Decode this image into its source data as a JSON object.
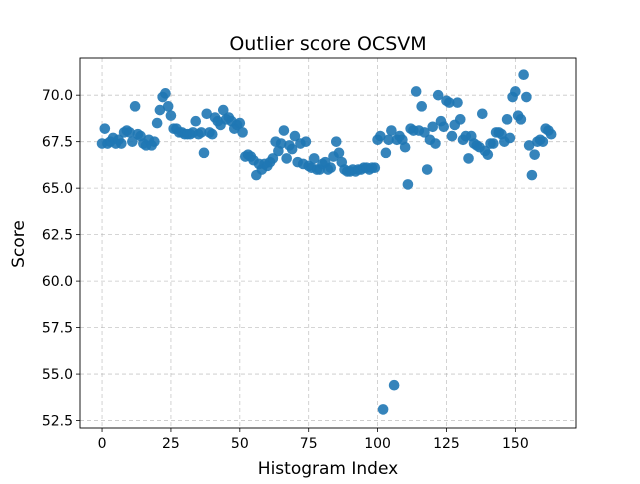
{
  "chart_data": {
    "type": "scatter",
    "title": "Outlier score OCSVM",
    "xlabel": "Histogram Index",
    "ylabel": "Score",
    "xlim": [
      -8,
      172
    ],
    "ylim": [
      52.1,
      72.0
    ],
    "xticks": [
      0,
      25,
      50,
      75,
      100,
      125,
      150
    ],
    "yticks": [
      52.5,
      55.0,
      57.5,
      60.0,
      62.5,
      65.0,
      67.5,
      70.0
    ],
    "ytick_labels": [
      "52.5",
      "55.0",
      "57.5",
      "60.0",
      "62.5",
      "65.0",
      "67.5",
      "70.0"
    ],
    "grid": true,
    "legend": "none",
    "marker_color": "#1f77b4",
    "x": [
      0,
      1,
      2,
      3,
      4,
      5,
      6,
      7,
      8,
      9,
      10,
      11,
      12,
      13,
      14,
      15,
      16,
      17,
      18,
      19,
      20,
      21,
      22,
      23,
      24,
      25,
      26,
      27,
      28,
      29,
      30,
      31,
      32,
      33,
      34,
      35,
      36,
      37,
      38,
      39,
      40,
      41,
      42,
      43,
      44,
      45,
      46,
      47,
      48,
      49,
      50,
      51,
      52,
      53,
      54,
      55,
      56,
      57,
      58,
      59,
      60,
      61,
      62,
      63,
      64,
      65,
      66,
      67,
      68,
      69,
      70,
      71,
      72,
      73,
      74,
      75,
      76,
      77,
      78,
      79,
      80,
      81,
      82,
      83,
      84,
      85,
      86,
      87,
      88,
      89,
      90,
      91,
      92,
      93,
      94,
      95,
      96,
      97,
      98,
      99,
      100,
      101,
      102,
      103,
      104,
      105,
      106,
      107,
      108,
      109,
      110,
      111,
      112,
      113,
      114,
      115,
      116,
      117,
      118,
      119,
      120,
      121,
      122,
      123,
      124,
      125,
      126,
      127,
      128,
      129,
      130,
      131,
      132,
      133,
      134,
      135,
      136,
      137,
      138,
      139,
      140,
      141,
      142,
      143,
      144,
      145,
      146,
      147,
      148,
      149,
      150,
      151,
      152,
      153,
      154,
      155,
      156,
      157,
      158,
      159,
      160,
      161,
      162,
      163
    ],
    "y": [
      67.4,
      68.2,
      67.4,
      67.5,
      67.7,
      67.4,
      67.6,
      67.4,
      68.0,
      68.1,
      68.0,
      67.5,
      69.4,
      67.9,
      67.8,
      67.4,
      67.3,
      67.6,
      67.3,
      67.5,
      68.5,
      69.2,
      69.9,
      70.1,
      69.4,
      68.9,
      68.2,
      68.2,
      68.0,
      68.0,
      67.9,
      67.9,
      67.9,
      68.0,
      68.6,
      67.9,
      68.0,
      66.9,
      69.0,
      68.0,
      67.9,
      68.8,
      68.6,
      68.4,
      69.2,
      68.7,
      68.8,
      68.6,
      68.2,
      68.4,
      68.5,
      68.0,
      66.7,
      66.8,
      66.7,
      66.5,
      65.7,
      66.3,
      66.0,
      66.3,
      66.2,
      66.4,
      66.6,
      67.5,
      67.0,
      67.4,
      68.1,
      66.6,
      67.3,
      67.1,
      67.8,
      66.4,
      67.4,
      66.3,
      67.5,
      66.2,
      66.1,
      66.6,
      66.0,
      66.0,
      66.3,
      66.4,
      66.0,
      66.1,
      66.7,
      67.5,
      66.9,
      66.4,
      66.0,
      65.9,
      65.9,
      66.0,
      65.9,
      66.0,
      66.0,
      66.1,
      66.1,
      66.0,
      66.1,
      66.1,
      67.6,
      67.8,
      53.1,
      66.9,
      67.6,
      68.1,
      54.4,
      67.6,
      67.8,
      67.6,
      67.2,
      65.2,
      68.2,
      68.1,
      70.2,
      68.1,
      69.4,
      68.0,
      66.0,
      67.6,
      68.3,
      67.4,
      70.0,
      68.6,
      68.3,
      69.7,
      69.6,
      67.8,
      68.4,
      69.6,
      68.7,
      67.6,
      67.8,
      66.6,
      67.8,
      67.4,
      67.3,
      67.2,
      69.0,
      67.0,
      66.8,
      67.4,
      67.4,
      68.0,
      68.0,
      67.9,
      67.5,
      68.7,
      67.7,
      69.9,
      70.2,
      68.9,
      68.7,
      71.1,
      69.9,
      67.3,
      65.7,
      66.8,
      67.5,
      67.6,
      67.5,
      68.2,
      68.1,
      67.9
    ]
  }
}
